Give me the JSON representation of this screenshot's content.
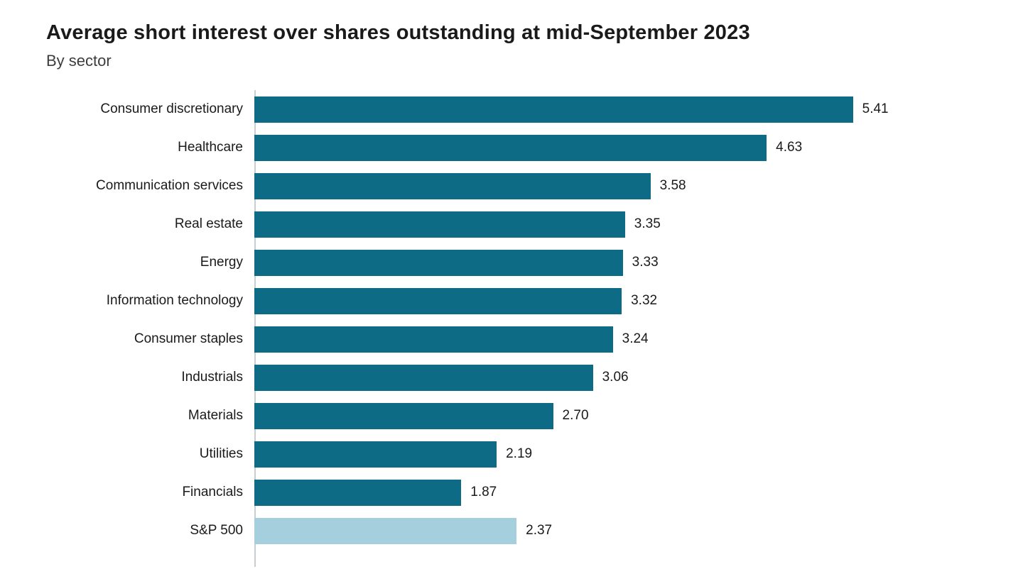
{
  "chart_data": {
    "type": "bar",
    "orientation": "horizontal",
    "title": "Average short interest over shares outstanding at mid-September 2023",
    "subtitle": "By sector",
    "categories": [
      "Consumer discretionary",
      "Healthcare",
      "Communication services",
      "Real estate",
      "Energy",
      "Information technology",
      "Consumer staples",
      "Industrials",
      "Materials",
      "Utilities",
      "Financials",
      "S&P 500"
    ],
    "values": [
      5.41,
      4.63,
      3.58,
      3.35,
      3.33,
      3.32,
      3.24,
      3.06,
      2.7,
      2.19,
      1.87,
      2.37
    ],
    "value_labels": [
      "5.41",
      "4.63",
      "3.58",
      "3.35",
      "3.33",
      "3.32",
      "3.24",
      "3.06",
      "2.70",
      "2.19",
      "1.87",
      "2.37"
    ],
    "xlim": [
      0,
      6.6
    ],
    "grid": false,
    "legend": false,
    "bar_color": "#0e6b86",
    "highlight_category": "S&P 500",
    "highlight_color": "#a6cfdd",
    "axis_line_color": "#c8cdd1",
    "text_color": "#1a1a1a"
  }
}
